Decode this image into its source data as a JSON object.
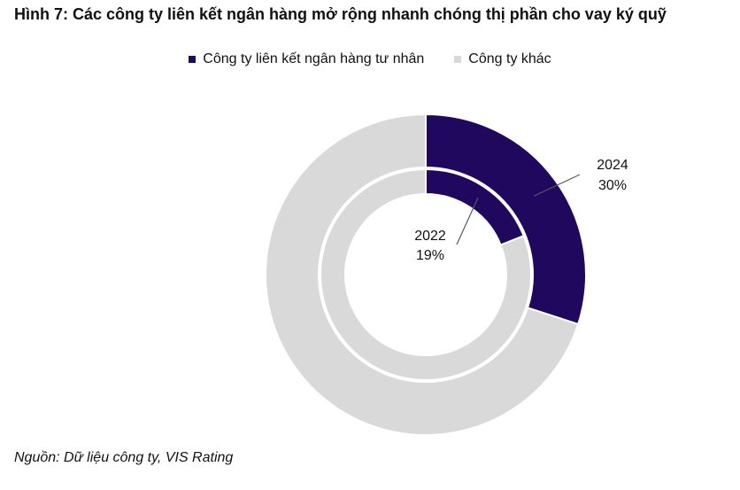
{
  "title": "Hình 7: Các công ty liên kết ngân hàng mở rộng nhanh chóng thị phần cho vay ký quỹ",
  "source": "Nguồn: Dữ liệu công ty, VIS Rating",
  "chart_data": {
    "type": "pie",
    "variant": "nested-donut",
    "title": "Hình 7: Các công ty liên kết ngân hàng mở rộng nhanh chóng thị phần cho vay ký quỹ",
    "legend_position": "top",
    "categories": [
      "Công ty liên kết ngân hàng tư nhân",
      "Công ty khác"
    ],
    "colors": [
      "#20085e",
      "#d9d9d9"
    ],
    "rings": [
      {
        "name": "2024",
        "position": "outer",
        "values": [
          30,
          70
        ],
        "label": "30%"
      },
      {
        "name": "2022",
        "position": "inner",
        "values": [
          19,
          81
        ],
        "label": "19%"
      }
    ]
  }
}
